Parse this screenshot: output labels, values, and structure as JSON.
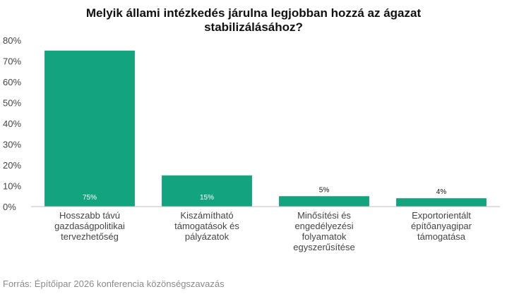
{
  "chart_data": {
    "type": "bar",
    "title_lines": [
      "Melyik állami intézkedés járulna legjobban hozzá az ágazat",
      "stabilizálásához?"
    ],
    "categories": [
      [
        "Hosszabb távú",
        "gazdaságpolitikai",
        "tervezhetőség"
      ],
      [
        "Kiszámítható",
        "támogatások és",
        "pályázatok"
      ],
      [
        "Minősítési és",
        "engedélyezési",
        "folyamatok",
        "egyszerűsítése"
      ],
      [
        "Exportorientált",
        "építőanyagipar",
        "támogatása"
      ]
    ],
    "values": [
      75,
      15,
      5,
      4
    ],
    "data_labels": [
      "75%",
      "15%",
      "5%",
      "4%"
    ],
    "ylim": [
      0,
      80
    ],
    "yticks": [
      "0%",
      "10%",
      "20%",
      "30%",
      "40%",
      "50%",
      "60%",
      "70%",
      "80%"
    ],
    "bar_color": "#14a37f",
    "grid": false
  },
  "source": "Forrás: Építőipar 2026 konferencia közönségszavazás"
}
